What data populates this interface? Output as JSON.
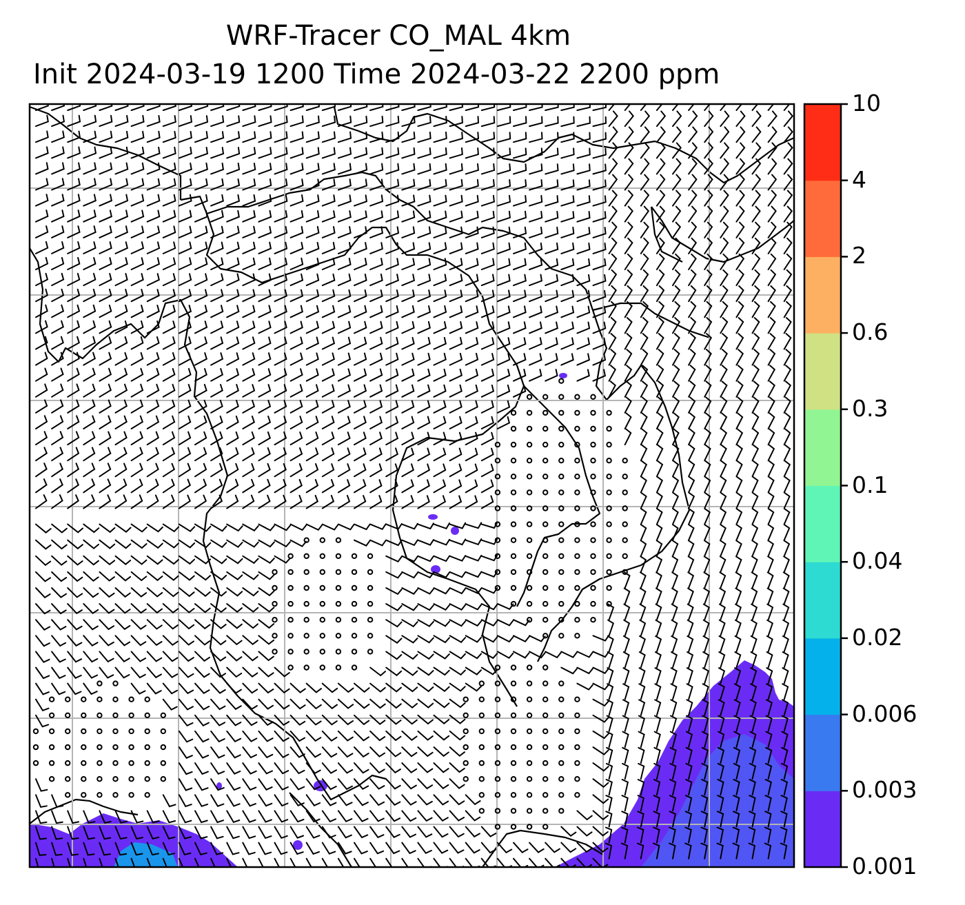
{
  "title": {
    "line1": "WRF-Tracer CO_MAL 4km",
    "line2": "Init 2024-03-19 1200 Time 2024-03-22 2200 ppm"
  },
  "colorbar": {
    "levels": [
      {
        "label": "0.001",
        "color": "#6a2cf5"
      },
      {
        "label": "0.003",
        "color": "#3a7af0"
      },
      {
        "label": "0.006",
        "color": "#05b1ea"
      },
      {
        "label": "0.02",
        "color": "#2ddbd2"
      },
      {
        "label": "0.04",
        "color": "#5ff5b6"
      },
      {
        "label": "0.1",
        "color": "#90f592"
      },
      {
        "label": "0.3",
        "color": "#d0e183"
      },
      {
        "label": "0.6",
        "color": "#fdb062"
      },
      {
        "label": "2",
        "color": "#ff6b3a"
      },
      {
        "label": "4",
        "color": "#ff2d16"
      },
      {
        "label": "10",
        "color": ""
      }
    ]
  },
  "map": {
    "field": "CO_MAL tracer concentration (ppm) with wind barbs",
    "gridlines": true,
    "plume_color": "#6a2cf5"
  }
}
